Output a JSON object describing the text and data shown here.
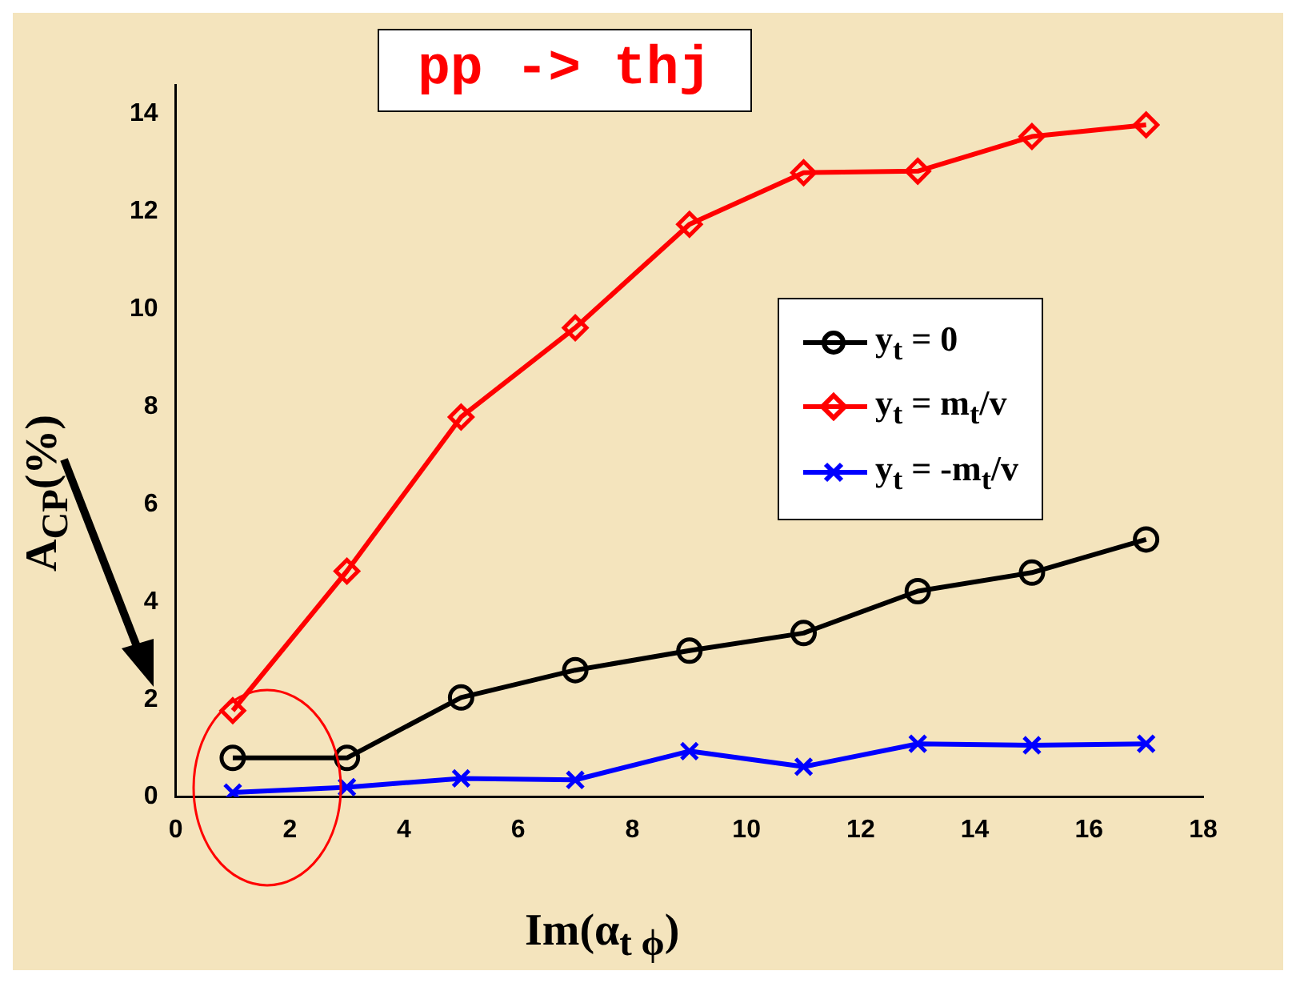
{
  "chart_data": {
    "type": "line",
    "title": "pp -> thj",
    "xlabel": "Im(α$_{t ϕ}$)",
    "ylabel": "A$_{CP}$(%)",
    "x": [
      1,
      3,
      5,
      7,
      9,
      11,
      13,
      15,
      17
    ],
    "series": [
      {
        "name": "y$_{t}$ = 0",
        "color": "#000000",
        "marker": "circle",
        "values": [
          0.8,
          0.8,
          2.04,
          2.6,
          3.0,
          3.36,
          4.22,
          4.6,
          5.28
        ]
      },
      {
        "name": "y$_{t}$ = m$_{t}$/v",
        "color": "#ff0000",
        "marker": "diamond",
        "values": [
          1.77,
          4.63,
          7.79,
          9.62,
          11.74,
          12.8,
          12.83,
          13.54,
          13.78
        ]
      },
      {
        "name": "y$_{t}$ = -m$_{t}$/v",
        "color": "#0000ff",
        "marker": "cross",
        "values": [
          0.09,
          0.2,
          0.38,
          0.35,
          0.94,
          0.62,
          1.09,
          1.06,
          1.09
        ]
      }
    ],
    "xlim": [
      0,
      18
    ],
    "xticks": [
      0,
      2,
      4,
      6,
      8,
      10,
      12,
      14,
      16,
      18
    ],
    "ylim": [
      0,
      14.6
    ],
    "yticks": [
      0,
      2,
      4,
      6,
      8,
      10,
      12,
      14
    ],
    "grid": false,
    "legend": "right",
    "line_style": "solid"
  }
}
